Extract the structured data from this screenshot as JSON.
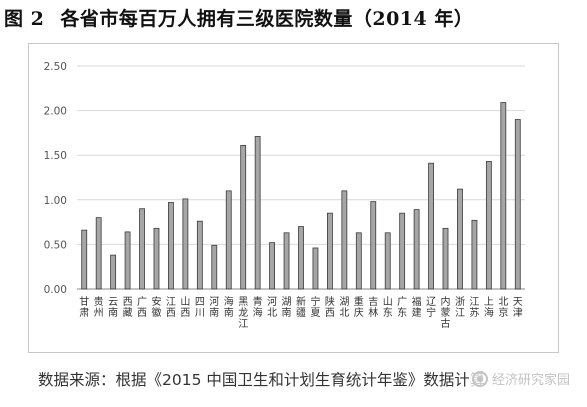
{
  "figure": {
    "number": "图 2",
    "title": "各省市每百万人拥有三级医院数量（2014 年）"
  },
  "source": {
    "text": "数据来源：根据《2015 中国卫生和计划生育统计年鉴》数据计算"
  },
  "watermark": {
    "text": "经济研究家园",
    "icon": "wechat-logo-icon"
  },
  "chart_data": {
    "type": "bar",
    "categories": [
      "甘肃",
      "贵州",
      "云南",
      "西藏",
      "广西",
      "安徽",
      "江西",
      "山西",
      "四川",
      "河南",
      "海南",
      "黑龙江",
      "青海",
      "河北",
      "湖南",
      "新疆",
      "宁夏",
      "陕西",
      "湖北",
      "重庆",
      "吉林",
      "山东",
      "广东",
      "福建",
      "辽宁",
      "内蒙古",
      "浙江",
      "江苏",
      "上海",
      "北京",
      "天津"
    ],
    "values": [
      0.66,
      0.8,
      0.38,
      0.64,
      0.9,
      0.68,
      0.97,
      1.01,
      0.76,
      0.49,
      1.1,
      1.61,
      1.71,
      0.52,
      0.63,
      0.7,
      0.46,
      0.85,
      1.1,
      0.63,
      0.98,
      0.63,
      0.85,
      0.89,
      1.41,
      0.68,
      1.12,
      0.77,
      1.43,
      2.09,
      1.9
    ],
    "ylim": [
      0,
      2.5
    ],
    "yticks": [
      "0.00",
      "0.50",
      "1.00",
      "1.50",
      "2.00",
      "2.50"
    ],
    "ytick_values": [
      0,
      0.5,
      1.0,
      1.5,
      2.0,
      2.5
    ],
    "grid": true,
    "legend": "none",
    "colors": {
      "bar_fill": "#a6a6a6",
      "bar_stroke": "#3a3a3a",
      "grid": "#d9d9d9",
      "axis": "#888888",
      "tick_text": "#555555"
    }
  }
}
